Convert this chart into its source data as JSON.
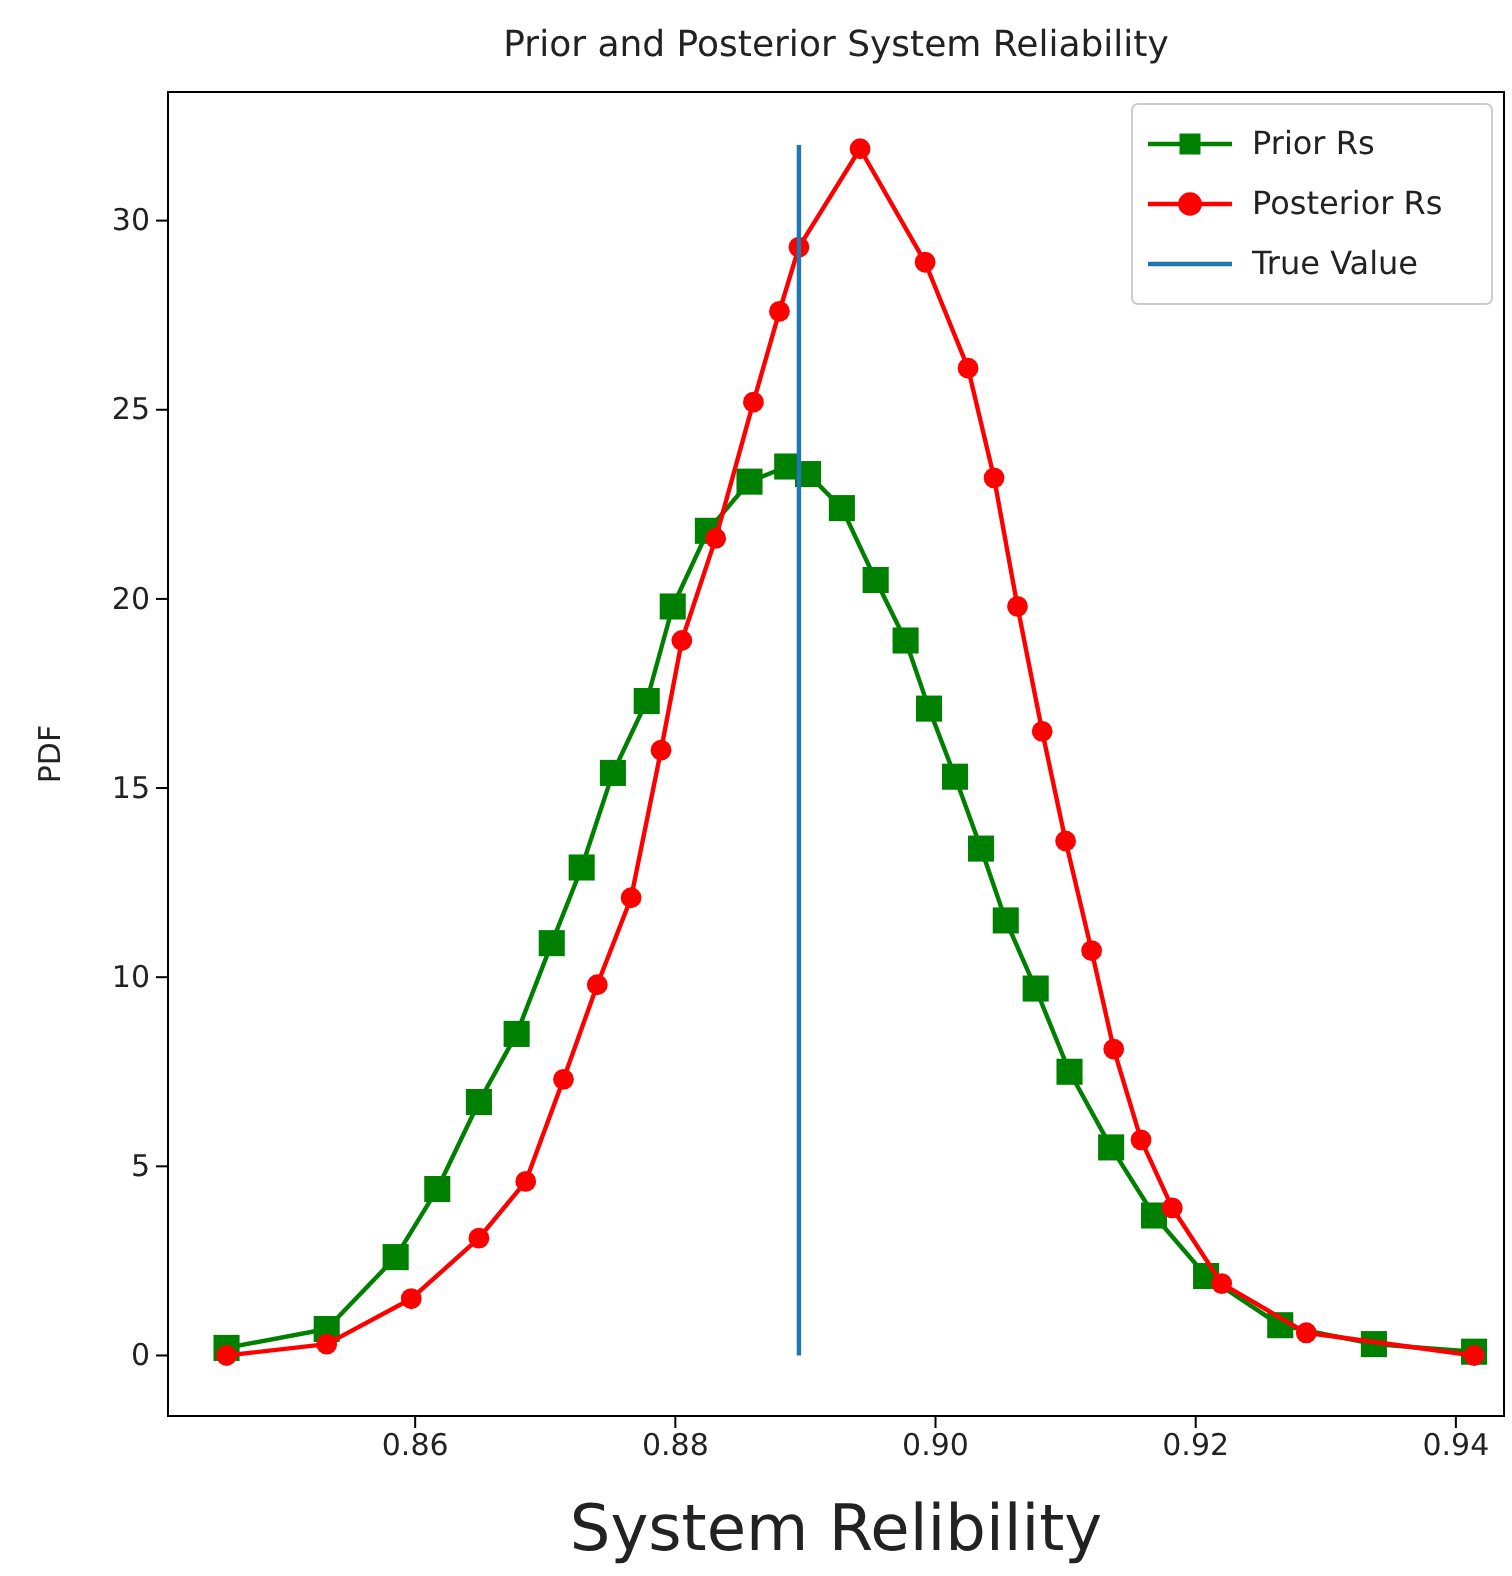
{
  "chart_data": {
    "type": "line",
    "title": "Prior and Posterior System Reliability",
    "xlabel": "System Relibility",
    "ylabel": "PDF",
    "xlim": [
      0.841,
      0.9437
    ],
    "xticks": [
      0.86,
      0.88,
      {
        "value": 0.9,
        "label": "0.90"
      },
      0.92,
      0.94
    ],
    "ylim": [
      -1.6,
      33.4
    ],
    "yticks": [
      0,
      5,
      10,
      15,
      20,
      25,
      30
    ],
    "grid": false,
    "legend": "top right",
    "series": [
      {
        "name": "Prior Rs",
        "color": "#008000",
        "marker": "square",
        "x": [
          0.8455,
          0.8532,
          0.8585,
          0.8617,
          0.8649,
          0.8678,
          0.8705,
          0.8728,
          0.8752,
          0.8778,
          0.8798,
          0.8825,
          0.8857,
          0.8886,
          0.8902,
          0.8928,
          0.8954,
          0.8977,
          0.8995,
          0.9015,
          0.9035,
          0.9054,
          0.9077,
          0.9103,
          0.9135,
          0.9168,
          0.9208,
          0.9265,
          0.9337,
          0.9414
        ],
        "values": [
          0.2,
          0.7,
          2.6,
          4.4,
          6.7,
          8.5,
          10.9,
          12.9,
          15.4,
          17.3,
          19.8,
          21.8,
          23.1,
          23.5,
          23.3,
          22.4,
          20.5,
          18.9,
          17.1,
          15.3,
          13.4,
          11.5,
          9.7,
          7.5,
          5.5,
          3.7,
          2.1,
          0.8,
          0.3,
          0.1
        ]
      },
      {
        "name": "Posterior Rs",
        "color": "#ff0000",
        "marker": "circle",
        "x": [
          0.8455,
          0.8532,
          0.8597,
          0.8649,
          0.8685,
          0.8714,
          0.874,
          0.8766,
          0.8789,
          0.8805,
          0.8831,
          0.886,
          0.888,
          0.8895,
          0.8942,
          0.8992,
          0.9025,
          0.9045,
          0.9063,
          0.9082,
          0.91,
          0.912,
          0.9137,
          0.9158,
          0.9182,
          0.922,
          0.9285,
          0.9414
        ],
        "values": [
          0,
          0.3,
          1.5,
          3.1,
          4.6,
          7.3,
          9.8,
          12.1,
          16,
          18.9,
          21.6,
          25.2,
          27.6,
          29.3,
          31.9,
          28.9,
          26.1,
          23.2,
          19.8,
          16.5,
          13.6,
          10.7,
          8.1,
          5.7,
          3.9,
          1.9,
          0.6,
          0
        ]
      },
      {
        "name": "True Value",
        "color": "#1f77b4",
        "marker": "none",
        "x": [
          0.8895,
          0.8895
        ],
        "values": [
          0,
          32
        ]
      }
    ]
  }
}
